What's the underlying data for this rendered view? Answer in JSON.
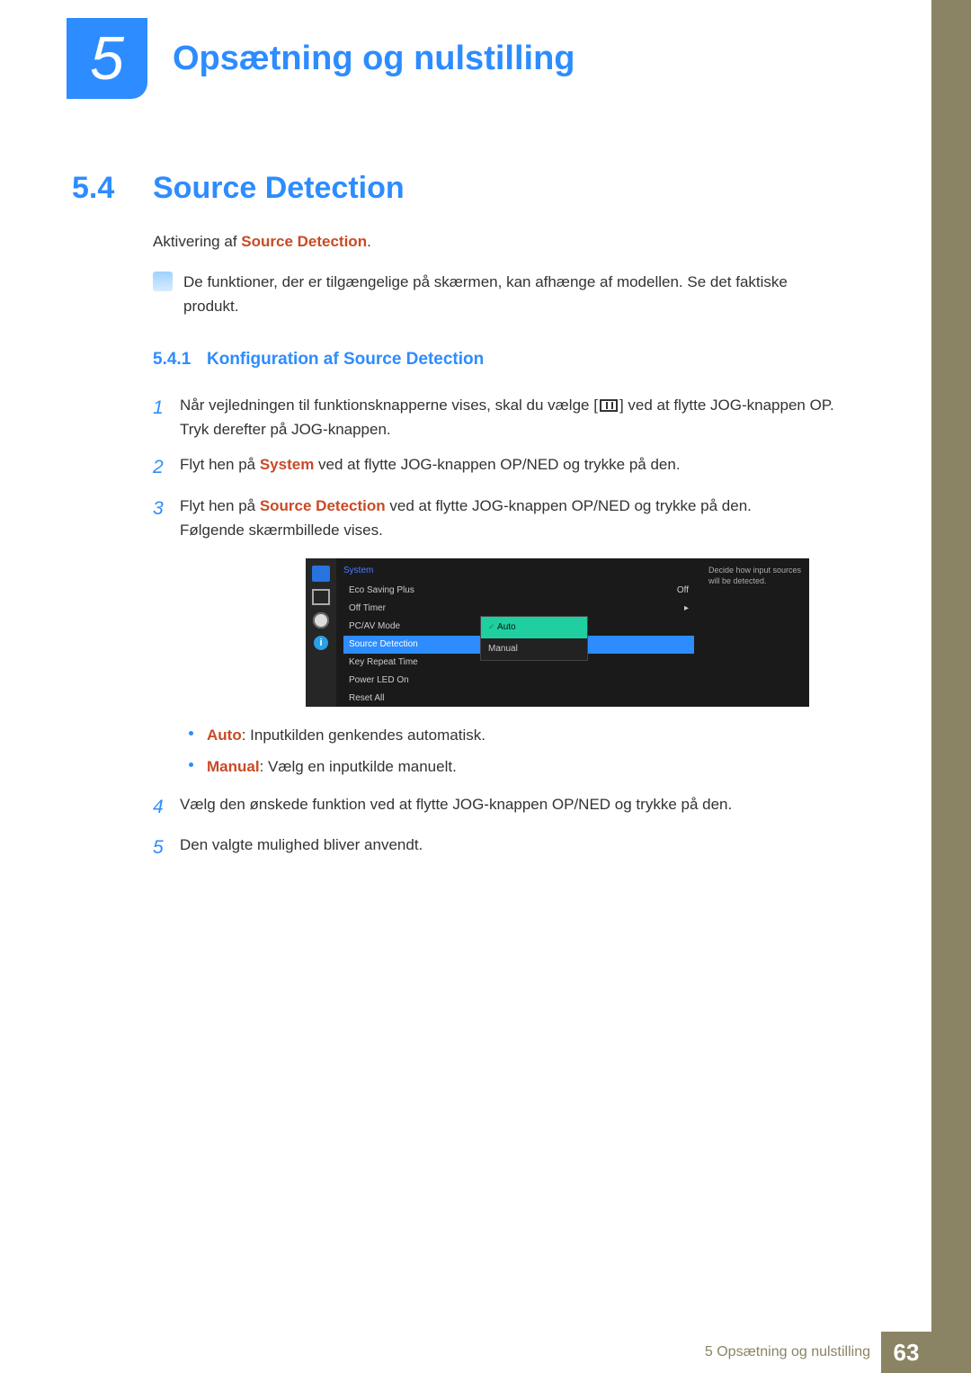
{
  "colors": {
    "accent": "#2d8cff",
    "sidebar": "#8a8465",
    "highlight_red": "#c94a25",
    "osd_bg": "#1a1a1a",
    "osd_selected": "#1fcfa0",
    "text": "#333333"
  },
  "chapter": {
    "number": "5",
    "title": "Opsætning og nulstilling"
  },
  "section": {
    "number": "5.4",
    "title": "Source Detection"
  },
  "intro": {
    "prefix": "Aktivering af ",
    "term": "Source Detection",
    "suffix": "."
  },
  "note": "De funktioner, der er tilgængelige på skærmen, kan afhænge af modellen. Se det faktiske produkt.",
  "subsection": {
    "number": "5.4.1",
    "title": "Konfiguration af Source Detection"
  },
  "steps": {
    "s1a": "Når vejledningen til funktionsknapperne vises, skal du vælge [",
    "s1b": "] ved at flytte JOG-knappen OP. Tryk derefter på JOG-knappen.",
    "s2a": "Flyt hen på ",
    "s2_term": "System",
    "s2b": " ved at flytte JOG-knappen OP/NED og trykke på den.",
    "s3a": "Flyt hen på ",
    "s3_term": "Source Detection",
    "s3b": " ved at flytte JOG-knappen OP/NED og trykke på den.",
    "s3c": "Følgende skærmbillede vises.",
    "s4": "Vælg den ønskede funktion ved at flytte JOG-knappen OP/NED og trykke på den.",
    "s5": "Den valgte mulighed bliver anvendt."
  },
  "step_numbers": {
    "n1": "1",
    "n2": "2",
    "n3": "3",
    "n4": "4",
    "n5": "5"
  },
  "osd": {
    "header": "System",
    "description": "Decide how input sources will be detected.",
    "items": [
      {
        "label": "Eco Saving Plus",
        "value": "Off"
      },
      {
        "label": "Off Timer",
        "value": "▸"
      },
      {
        "label": "PC/AV Mode",
        "value": ""
      },
      {
        "label": "Source Detection",
        "value": ""
      },
      {
        "label": "Key Repeat Time",
        "value": ""
      },
      {
        "label": "Power LED On",
        "value": ""
      },
      {
        "label": "Reset All",
        "value": ""
      }
    ],
    "selected_index": 3,
    "popup": {
      "options": [
        "Auto",
        "Manual"
      ],
      "selected": "Auto"
    },
    "info_glyph": "i"
  },
  "bullets": {
    "auto_term": "Auto",
    "auto_text": ": Inputkilden genkendes automatisk.",
    "manual_term": "Manual",
    "manual_text": ": Vælg en inputkilde manuelt."
  },
  "footer": {
    "text": "5 Opsætning og nulstilling",
    "page": "63"
  }
}
